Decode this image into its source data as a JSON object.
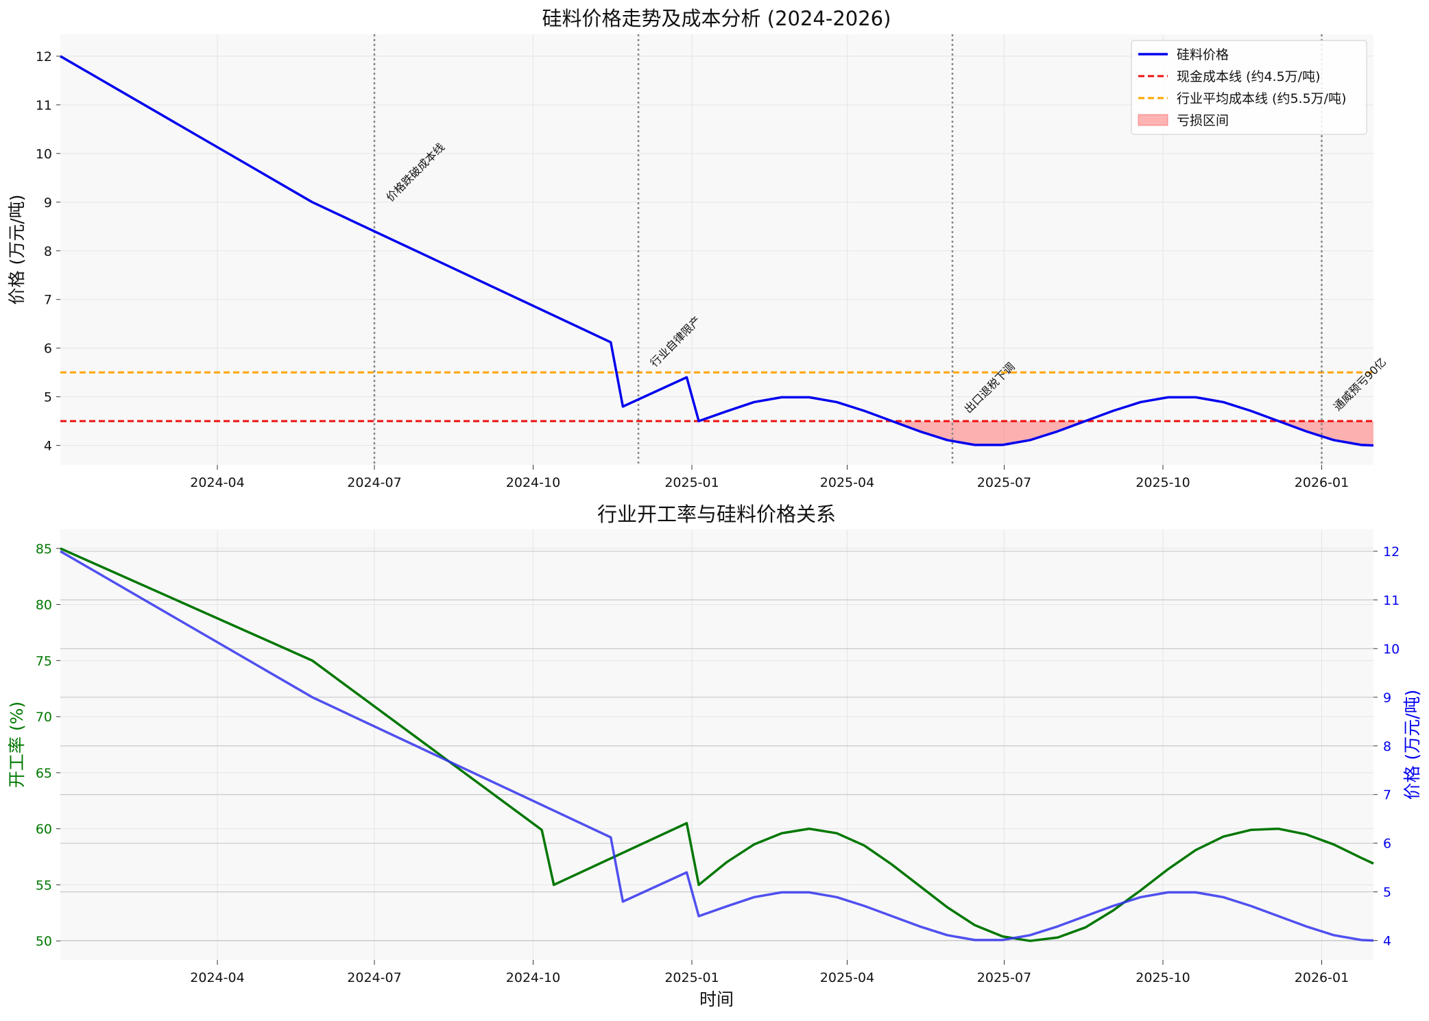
{
  "chart_data": [
    {
      "type": "line",
      "title": "硅料价格走势及成本分析 (2024-2026)",
      "xlabel": "",
      "ylabel": "价格 (万元/吨)",
      "x_range": [
        "2024-01-01",
        "2026-01-31"
      ],
      "ylim": [
        3.6,
        12.45
      ],
      "x_ticks": [
        "2024-04",
        "2024-07",
        "2024-10",
        "2025-01",
        "2025-04",
        "2025-07",
        "2025-10",
        "2026-01"
      ],
      "y_ticks": [
        4,
        5,
        6,
        7,
        8,
        9,
        10,
        11,
        12
      ],
      "grid": true,
      "legend_position": "top-right",
      "series": [
        {
          "name": "硅料价格",
          "color": "#0000ee",
          "points": [
            [
              "2024-01-01",
              12.0
            ],
            [
              "2024-05-26",
              9.0
            ],
            [
              "2024-11-15",
              6.12
            ],
            [
              "2024-11-22",
              4.8
            ],
            [
              "2024-12-29",
              5.4
            ],
            [
              "2025-01-05",
              4.5
            ],
            [
              "2025-01-21",
              4.7
            ],
            [
              "2025-02-06",
              4.89
            ],
            [
              "2025-02-22",
              4.99
            ],
            [
              "2025-03-10",
              4.99
            ],
            [
              "2025-03-26",
              4.89
            ],
            [
              "2025-04-11",
              4.71
            ],
            [
              "2025-04-27",
              4.5
            ],
            [
              "2025-05-13",
              4.29
            ],
            [
              "2025-05-29",
              4.11
            ],
            [
              "2025-06-14",
              4.01
            ],
            [
              "2025-06-30",
              4.01
            ],
            [
              "2025-07-16",
              4.11
            ],
            [
              "2025-08-01",
              4.29
            ],
            [
              "2025-08-17",
              4.5
            ],
            [
              "2025-09-02",
              4.71
            ],
            [
              "2025-09-18",
              4.89
            ],
            [
              "2025-10-04",
              4.99
            ],
            [
              "2025-10-20",
              4.99
            ],
            [
              "2025-11-05",
              4.89
            ],
            [
              "2025-11-21",
              4.71
            ],
            [
              "2025-12-07",
              4.5
            ],
            [
              "2025-12-23",
              4.29
            ],
            [
              "2026-01-08",
              4.11
            ],
            [
              "2026-01-24",
              4.01
            ],
            [
              "2026-01-31",
              4.0
            ]
          ]
        },
        {
          "name": "现金成本线 (约4.5万/吨)",
          "color": "#ee1111",
          "y": 4.5,
          "style": "dashed"
        },
        {
          "name": "行业平均成本线 (约5.5万/吨)",
          "color": "#ffa500",
          "y": 5.5,
          "style": "dashed"
        }
      ],
      "fill": {
        "name": "亏损区间",
        "color": "#ff8080",
        "between": "price_and_cash_cost_when_below"
      },
      "events": [
        {
          "date": "2024-07-01",
          "label": "价格跌破成本线",
          "label_y": 9.0
        },
        {
          "date": "2024-12-01",
          "label": "行业自律限产",
          "label_y": 5.6
        },
        {
          "date": "2025-06-01",
          "label": "出口退税下调",
          "label_y": 4.65
        },
        {
          "date": "2026-01-01",
          "label": "通威预亏90亿",
          "label_y": 4.7
        }
      ]
    },
    {
      "type": "line",
      "title": "行业开工率与硅料价格关系",
      "xlabel": "时间",
      "ylabel_left": "开工率 (%)",
      "ylabel_right": "价格 (万元/吨)",
      "x_range": [
        "2024-01-01",
        "2026-01-31"
      ],
      "ylim_left": [
        48.3,
        86.7
      ],
      "ylim_right": [
        3.6,
        12.45
      ],
      "x_ticks": [
        "2024-04",
        "2024-07",
        "2024-10",
        "2025-01",
        "2025-04",
        "2025-07",
        "2025-10",
        "2026-01"
      ],
      "y_ticks_left": [
        50,
        55,
        60,
        65,
        70,
        75,
        80,
        85
      ],
      "y_ticks_right": [
        4,
        5,
        6,
        7,
        8,
        9,
        10,
        11,
        12
      ],
      "grid": true,
      "series": [
        {
          "name": "开工率",
          "axis": "left",
          "color": "#007700",
          "points": [
            [
              "2024-01-01",
              85.0
            ],
            [
              "2024-05-26",
              75.0
            ],
            [
              "2024-10-06",
              59.9
            ],
            [
              "2024-10-13",
              55.0
            ],
            [
              "2024-12-29",
              60.5
            ],
            [
              "2025-01-05",
              55.0
            ],
            [
              "2025-01-21",
              57.0
            ],
            [
              "2025-02-06",
              58.6
            ],
            [
              "2025-02-22",
              59.6
            ],
            [
              "2025-03-10",
              60.0
            ],
            [
              "2025-03-26",
              59.6
            ],
            [
              "2025-04-11",
              58.5
            ],
            [
              "2025-04-27",
              56.8
            ],
            [
              "2025-05-13",
              54.9
            ],
            [
              "2025-05-29",
              53.0
            ],
            [
              "2025-06-14",
              51.4
            ],
            [
              "2025-06-30",
              50.4
            ],
            [
              "2025-07-16",
              50.0
            ],
            [
              "2025-08-01",
              50.3
            ],
            [
              "2025-08-17",
              51.2
            ],
            [
              "2025-09-02",
              52.7
            ],
            [
              "2025-09-18",
              54.5
            ],
            [
              "2025-10-04",
              56.4
            ],
            [
              "2025-10-20",
              58.1
            ],
            [
              "2025-11-05",
              59.3
            ],
            [
              "2025-11-21",
              59.9
            ],
            [
              "2025-12-07",
              60.0
            ],
            [
              "2025-12-23",
              59.5
            ],
            [
              "2026-01-08",
              58.6
            ],
            [
              "2026-01-24",
              57.4
            ],
            [
              "2026-01-31",
              56.9
            ]
          ]
        },
        {
          "name": "价格",
          "axis": "right",
          "color": "#3333ee",
          "same_as": "chart_data.0.series.0"
        }
      ]
    }
  ]
}
